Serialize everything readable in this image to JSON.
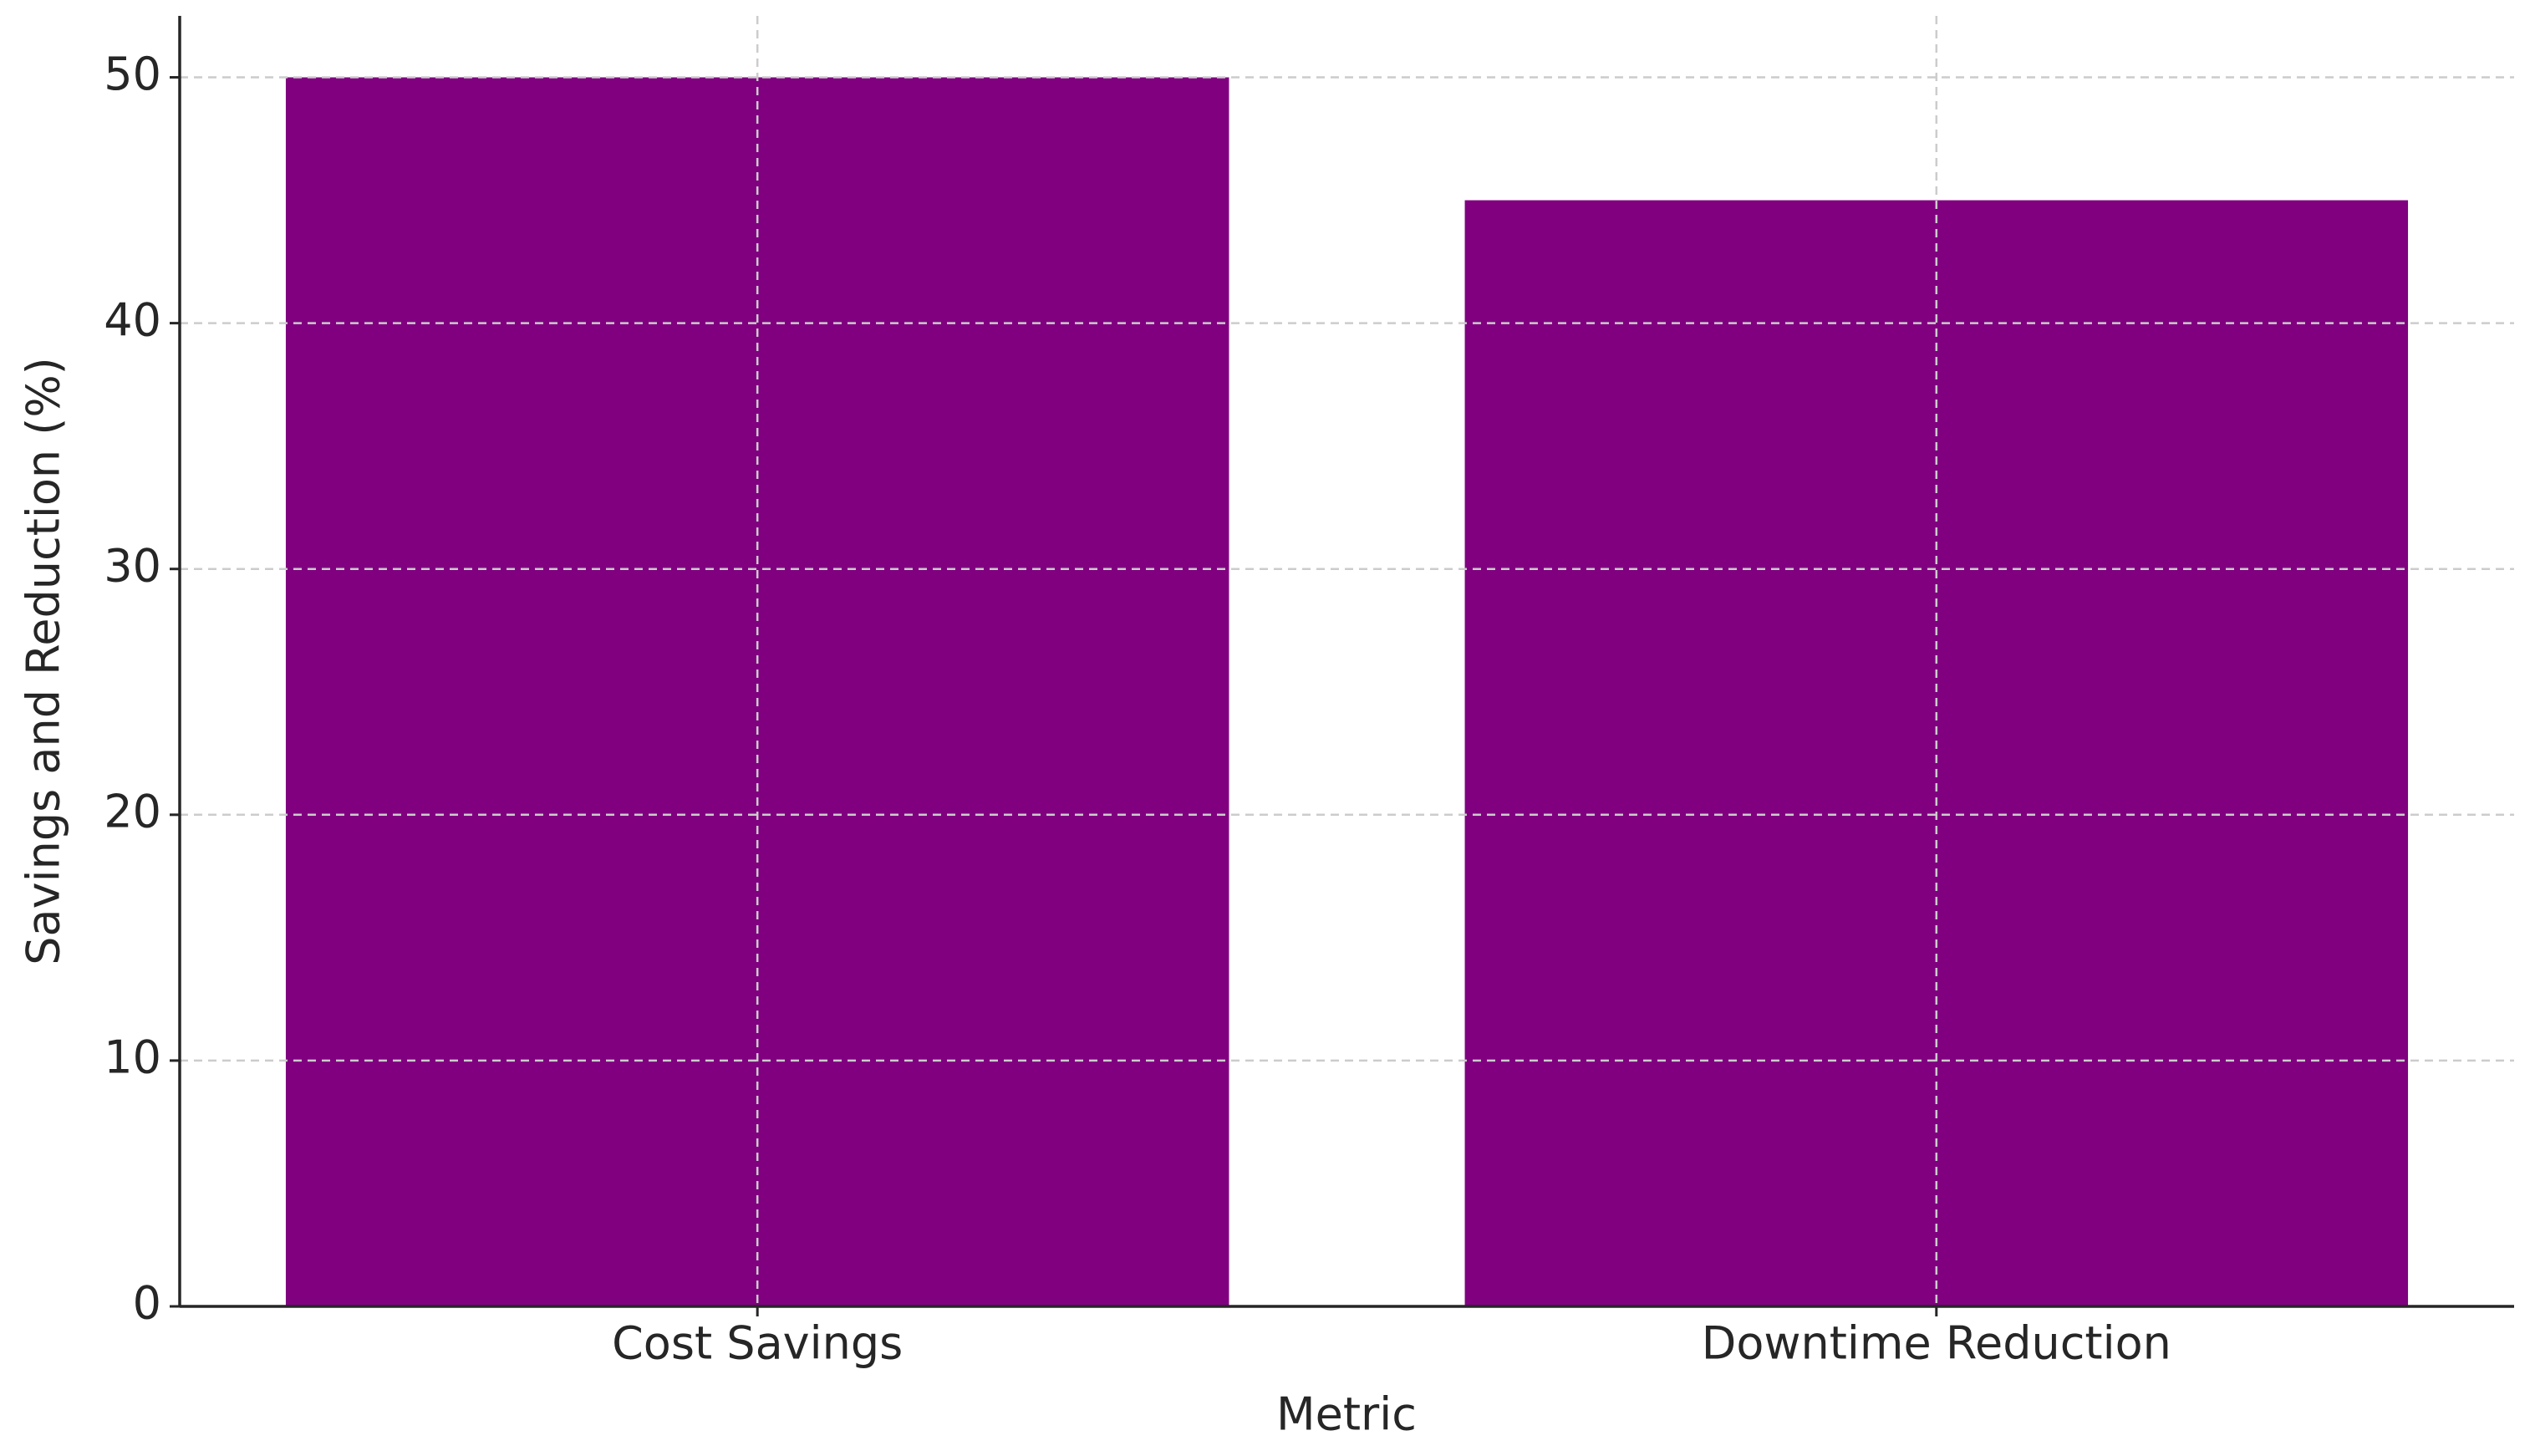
{
  "chart_data": {
    "type": "bar",
    "x_label": "Metric",
    "y_label": "Savings and Reduction (%)",
    "categories": [
      "Cost Savings",
      "Downtime Reduction"
    ],
    "values": [
      50,
      45
    ],
    "color": "#800080",
    "ylim": [
      0,
      52.5
    ],
    "yticks": [
      0,
      10,
      20,
      30,
      40,
      50
    ],
    "grid": true
  }
}
